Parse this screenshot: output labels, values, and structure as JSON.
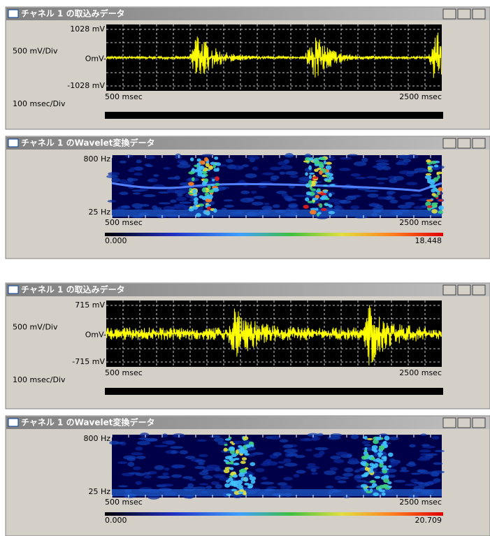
{
  "windows": [
    {
      "type": "waveform",
      "title": "チャネル 1 の取込みデータ",
      "y_top": "1028 mV",
      "y_div": "500 mV/Div",
      "y_zero": "OmV-",
      "y_bottom": "-1028 mV",
      "x_div": "100 msec/Div",
      "x_start": "500 msec",
      "x_end": "2500 msec"
    },
    {
      "type": "wavelet",
      "title": "チャネル 1 のWavelet変換データ",
      "f_top": "800 Hz",
      "f_bottom": "25 Hz",
      "x_start": "500 msec",
      "x_end": "2500 msec",
      "scale_min": "0.000",
      "scale_max": "18.448"
    },
    {
      "type": "waveform",
      "title": "チャネル 1 の取込みデータ",
      "y_top": "715 mV",
      "y_div": "500 mV/Div",
      "y_zero": "OmV-",
      "y_bottom": "-715 mV",
      "x_div": "100 msec/Div",
      "x_start": "500 msec",
      "x_end": "2500 msec"
    },
    {
      "type": "wavelet",
      "title": "チャネル 1 のWavelet変換データ",
      "f_top": "800 Hz",
      "f_bottom": "25 Hz",
      "x_start": "500 msec",
      "x_end": "2500 msec",
      "scale_min": "0.000",
      "scale_max": "20.709"
    }
  ]
}
